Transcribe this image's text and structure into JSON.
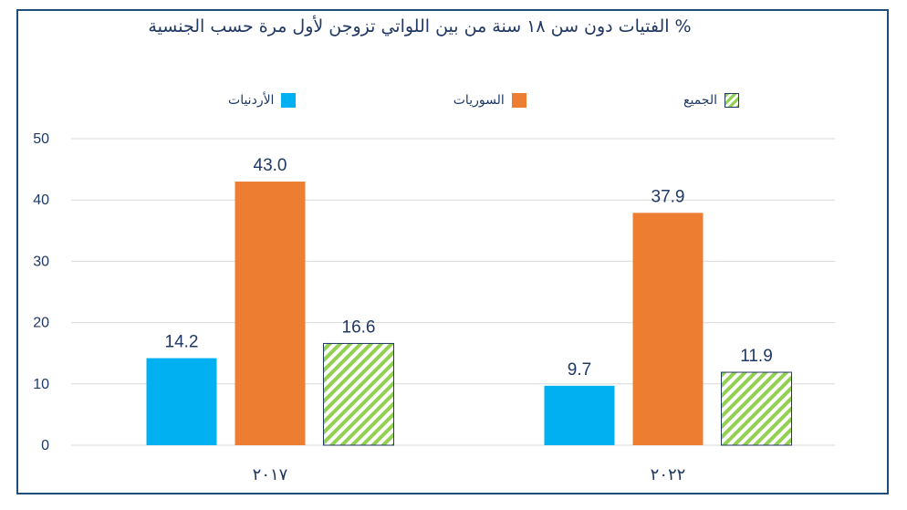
{
  "chart_data": {
    "type": "bar",
    "title": "% الفتيات دون سن ١٨ سنة من بين اللواتي تزوجن لأول مرة حسب الجنسية",
    "categories": [
      "٢٠١٧",
      "٢٠٢٢"
    ],
    "series": [
      {
        "name": "الأردنيات",
        "values": [
          14.2,
          9.7
        ],
        "value_labels": [
          "14.2",
          "9.7"
        ],
        "color": "#00b0f0"
      },
      {
        "name": "السوريات",
        "values": [
          43.0,
          37.9
        ],
        "value_labels": [
          "43.0",
          "37.9"
        ],
        "color": "#ed7d31"
      },
      {
        "name": "الجميع",
        "values": [
          16.6,
          11.9
        ],
        "value_labels": [
          "16.6",
          "11.9"
        ],
        "color": "#92d050",
        "pattern": "diagonal-hatch"
      }
    ],
    "ylim": [
      0,
      50
    ],
    "yticks": [
      "0",
      "10",
      "20",
      "30",
      "40",
      "50"
    ],
    "grid": true,
    "legend": "top"
  }
}
